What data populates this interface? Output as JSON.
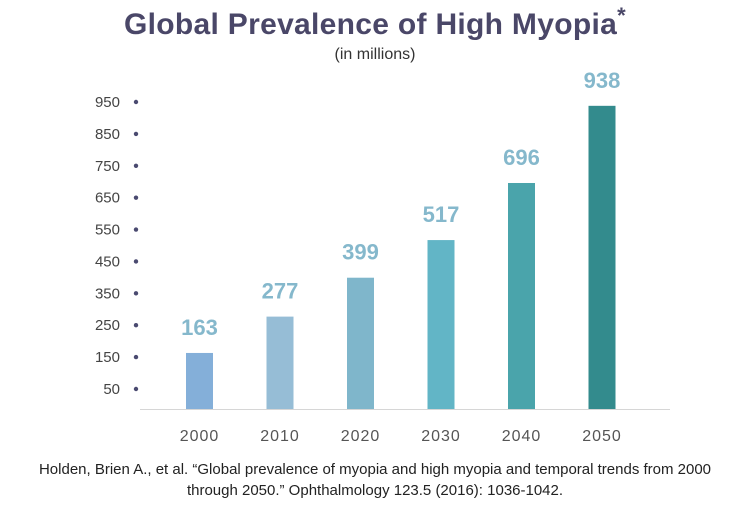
{
  "title": "Global Prevalence of High Myopia",
  "title_marker": "*",
  "subtitle": "(in millions)",
  "chart_data": {
    "type": "bar",
    "title": "Global Prevalence of High Myopia*",
    "subtitle": "(in millions)",
    "categories": [
      "2000",
      "2010",
      "2020",
      "2030",
      "2040",
      "2050"
    ],
    "values": [
      163,
      277,
      399,
      517,
      696,
      938
    ],
    "data_labels": [
      "163",
      "277",
      "399",
      "517",
      "696",
      "938"
    ],
    "yticks": [
      50,
      150,
      250,
      350,
      450,
      550,
      650,
      750,
      850,
      950
    ],
    "ylim": [
      0,
      960
    ],
    "grid": false,
    "legend": "none",
    "colors": [
      "#84afd9",
      "#96bdd6",
      "#7fb6cb",
      "#62b5c6",
      "#4aa4ab",
      "#338b8d"
    ],
    "label_color": "#85b8cc"
  },
  "citation": "Holden, Brien A., et al. “Global prevalence of myopia and high myopia and temporal trends from 2000 through 2050.” Ophthalmology 123.5 (2016): 1036-1042."
}
